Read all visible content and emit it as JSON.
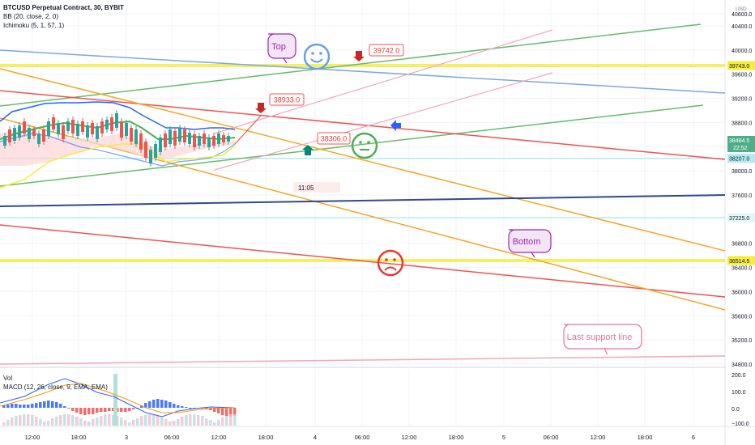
{
  "header": {
    "symbol_line": "BTCUSD Perpetual Contract, 30, BYBIT",
    "indicators": [
      "BB (20, close, 2, 0)",
      "Ichimoku (5, 1, 57, 1)"
    ]
  },
  "lower_pane": {
    "vol_label": "Vol",
    "macd_label": "MACD (12, 26, close, 9, EMA, EMA)",
    "axis_ticks": [
      "200.0",
      "100.0",
      "0.0",
      "−100.0"
    ]
  },
  "price_axis": {
    "currency": "USD",
    "ticks": [
      "40600.0",
      "40400.0",
      "40000.0",
      "39600.0",
      "39200.0",
      "38800.0",
      "38400.0",
      "38000.0",
      "37600.0",
      "36800.0",
      "36400.0",
      "36000.0",
      "35600.0",
      "35200.0",
      "34800.0"
    ],
    "level_labels": [
      "39743.0",
      "38484.5",
      "22:52",
      "38207.0",
      "37225.0",
      "36514.5"
    ]
  },
  "time_axis": {
    "ticks": [
      "12:00",
      "18:00",
      "3",
      "06:00",
      "12:00",
      "18:00",
      "4",
      "06:00",
      "12:00",
      "18:00",
      "5",
      "06:00",
      "12:00",
      "18:00",
      "6"
    ],
    "crosshair_time": "11:05"
  },
  "annotations": {
    "top_label": "Top",
    "bottom_label": "Bottom",
    "support_label": "Last support line",
    "price_callouts": [
      "39742.0",
      "38933.0",
      "38306.0"
    ]
  },
  "colors": {
    "green_line": "#66bb6a",
    "red_line": "#ef5350",
    "orange_line": "#f5a623",
    "blue_line": "#7aa8e0",
    "navy_line": "#2e4a8f",
    "yellow_line": "#f5ec3b",
    "pink_line": "#f2a7b9",
    "purple": "#9c27b0"
  },
  "chart_data": {
    "type": "line",
    "title": "BTCUSD Perpetual Contract, 30, BYBIT",
    "ylim": [
      34600,
      40700
    ],
    "grid": true,
    "horizontal_levels": [
      39743.0,
      38207.0,
      37225.0,
      36514.5
    ],
    "last_price": 38484.5,
    "macd_ylim": [
      -120,
      210
    ]
  }
}
